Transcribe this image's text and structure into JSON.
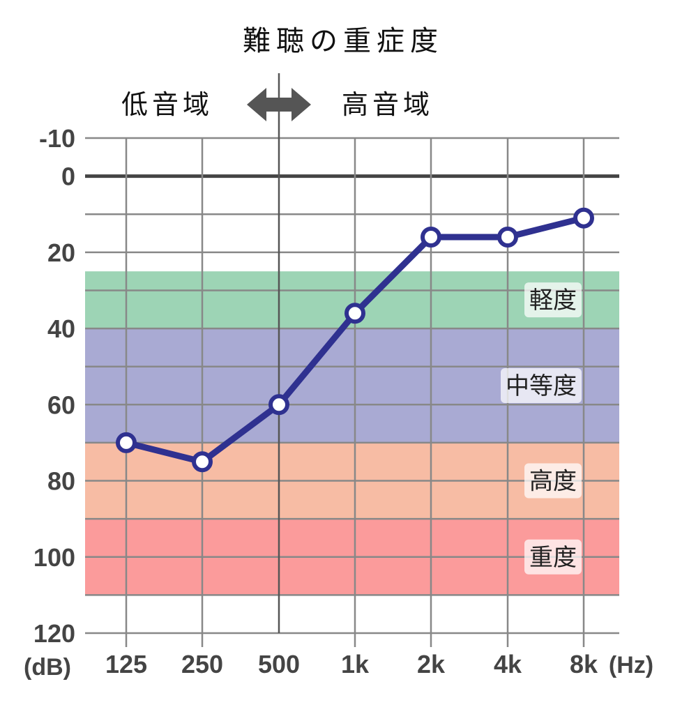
{
  "chart_data": {
    "type": "line",
    "title": "難聴の重症度",
    "region_left": "低音域",
    "region_right": "高音域",
    "xunit": "(Hz)",
    "yunit": "(dB)",
    "categories": [
      "125",
      "250",
      "500",
      "1k",
      "2k",
      "4k",
      "8k"
    ],
    "yticks": [
      "-10",
      "0",
      "20",
      "40",
      "60",
      "80",
      "100",
      "120"
    ],
    "ytick_values": [
      -10,
      0,
      20,
      40,
      60,
      80,
      100,
      120
    ],
    "ylim": [
      -10,
      120
    ],
    "y_inverted": true,
    "grid": true,
    "series": [
      {
        "values": [
          70,
          75,
          60,
          36,
          16,
          16,
          11
        ],
        "color": "#2f3190"
      }
    ],
    "bands": [
      {
        "label": "軽度",
        "from": 25,
        "to": 40,
        "color": "#9dd4b5"
      },
      {
        "label": "中等度",
        "from": 40,
        "to": 70,
        "color": "#a9aad3"
      },
      {
        "label": "高度",
        "from": 70,
        "to": 90,
        "color": "#f7bca4"
      },
      {
        "label": "重度",
        "from": 90,
        "to": 110,
        "color": "#fb9b9b"
      }
    ]
  }
}
